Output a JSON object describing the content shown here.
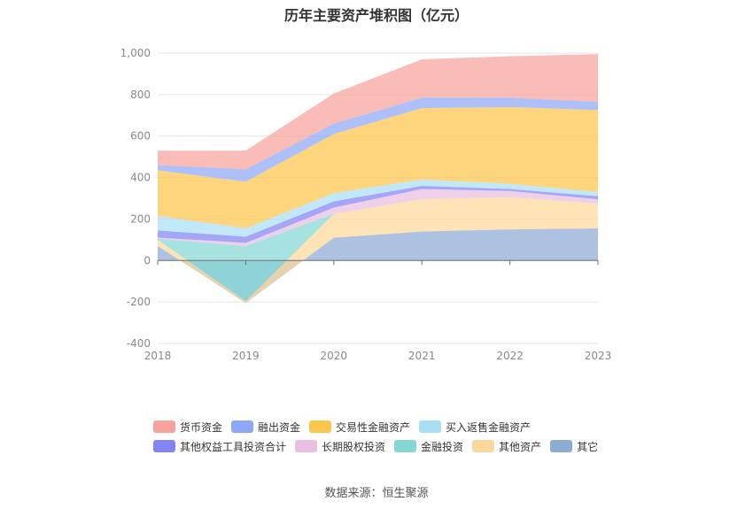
{
  "chart_data": {
    "type": "area",
    "stacked": true,
    "title": "历年主要资产堆积图（亿元）",
    "categories": [
      "2018",
      "2019",
      "2020",
      "2021",
      "2022",
      "2023"
    ],
    "y_ticks": [
      "-400",
      "-200",
      "0",
      "200",
      "400",
      "600",
      "800",
      "1,000"
    ],
    "ylim": [
      -400,
      1000
    ],
    "series": [
      {
        "name": "其它",
        "color": "#8eabd6",
        "values": [
          70,
          -205,
          110,
          140,
          150,
          155
        ]
      },
      {
        "name": "其他资产",
        "color": "#fdd89a",
        "values": [
          30,
          10,
          115,
          155,
          155,
          120
        ]
      },
      {
        "name": "金融投资",
        "color": "#84d8d4",
        "values": [
          5,
          265,
          0,
          0,
          0,
          0
        ]
      },
      {
        "name": "长期股权投资",
        "color": "#e8bfe0",
        "values": [
          5,
          15,
          30,
          50,
          30,
          20
        ]
      },
      {
        "name": "其他权益工具投资合计",
        "color": "#8483f2",
        "values": [
          35,
          30,
          30,
          15,
          10,
          15
        ]
      },
      {
        "name": "买入返售金融资产",
        "color": "#a8dff7",
        "values": [
          70,
          40,
          40,
          30,
          25,
          20
        ]
      },
      {
        "name": "交易性金融资产",
        "color": "#fcc54b",
        "values": [
          220,
          225,
          285,
          345,
          370,
          395
        ]
      },
      {
        "name": "融出资金",
        "color": "#8fa7f8",
        "values": [
          25,
          60,
          50,
          50,
          45,
          40
        ]
      },
      {
        "name": "货币资金",
        "color": "#f8a29b",
        "values": [
          70,
          90,
          145,
          185,
          200,
          230
        ]
      }
    ],
    "legend": [
      [
        "货币资金",
        "融出资金",
        "交易性金融资产",
        "买入返售金融资产"
      ],
      [
        "其他权益工具投资合计",
        "长期股权投资",
        "金融投资",
        "其他资产",
        "其它"
      ]
    ],
    "legend_colors": {
      "货币资金": "#f8a29b",
      "融出资金": "#8fa7f8",
      "交易性金融资产": "#fcc54b",
      "买入返售金融资产": "#a8dff7",
      "其他权益工具投资合计": "#8483f2",
      "长期股权投资": "#e8bfe0",
      "金融投资": "#84d8d4",
      "其他资产": "#fdd89a",
      "其它": "#8eabd6"
    }
  },
  "source": "数据来源：恒生聚源"
}
